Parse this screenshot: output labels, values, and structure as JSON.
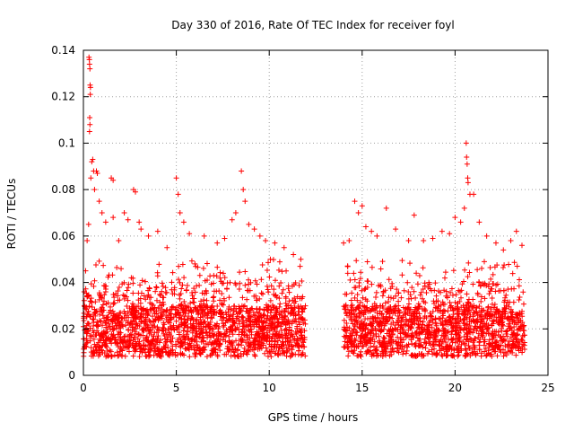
{
  "chart_data": {
    "type": "scatter",
    "title": "Day 330 of 2016, Rate Of TEC Index for receiver foyl",
    "xlabel": "GPS time / hours",
    "ylabel": "ROTI / TECUs",
    "xlim": [
      0,
      25
    ],
    "ylim": [
      0,
      0.14
    ],
    "xticks": [
      0,
      5,
      10,
      15,
      20,
      25
    ],
    "xtick_labels": [
      "0",
      "5",
      "10",
      "15",
      "20",
      "25"
    ],
    "yticks": [
      0,
      0.02,
      0.04,
      0.06,
      0.08,
      0.1,
      0.12,
      0.14
    ],
    "ytick_labels": [
      "0",
      "0.02",
      "0.04",
      "0.06",
      "0.08",
      "0.1",
      "0.12",
      "0.14"
    ],
    "grid": true,
    "marker": "+",
    "color": "#ff0000",
    "series": [
      {
        "name": "ROTI",
        "segments": [
          [
            0,
            11.95
          ],
          [
            14.0,
            23.75
          ]
        ],
        "typical_range": [
          0.008,
          0.04
        ],
        "points": [
          [
            0.05,
            0.03
          ],
          [
            0.12,
            0.045
          ],
          [
            0.2,
            0.058
          ],
          [
            0.28,
            0.065
          ],
          [
            0.3,
            0.137
          ],
          [
            0.32,
            0.136
          ],
          [
            0.33,
            0.134
          ],
          [
            0.35,
            0.132
          ],
          [
            0.36,
            0.125
          ],
          [
            0.38,
            0.124
          ],
          [
            0.37,
            0.121
          ],
          [
            0.34,
            0.111
          ],
          [
            0.35,
            0.108
          ],
          [
            0.33,
            0.105
          ],
          [
            0.4,
            0.085
          ],
          [
            0.45,
            0.092
          ],
          [
            0.5,
            0.093
          ],
          [
            0.55,
            0.088
          ],
          [
            0.6,
            0.08
          ],
          [
            0.7,
            0.088
          ],
          [
            0.75,
            0.087
          ],
          [
            0.85,
            0.075
          ],
          [
            1.0,
            0.07
          ],
          [
            1.2,
            0.066
          ],
          [
            1.5,
            0.085
          ],
          [
            1.6,
            0.084
          ],
          [
            1.6,
            0.068
          ],
          [
            1.9,
            0.058
          ],
          [
            2.2,
            0.07
          ],
          [
            2.4,
            0.067
          ],
          [
            2.7,
            0.08
          ],
          [
            2.8,
            0.079
          ],
          [
            3.0,
            0.066
          ],
          [
            3.1,
            0.063
          ],
          [
            3.5,
            0.06
          ],
          [
            4.0,
            0.062
          ],
          [
            4.5,
            0.055
          ],
          [
            5.0,
            0.085
          ],
          [
            5.1,
            0.078
          ],
          [
            5.2,
            0.07
          ],
          [
            5.4,
            0.066
          ],
          [
            5.7,
            0.061
          ],
          [
            6.0,
            0.048
          ],
          [
            6.5,
            0.06
          ],
          [
            7.2,
            0.057
          ],
          [
            7.6,
            0.059
          ],
          [
            8.0,
            0.067
          ],
          [
            8.2,
            0.07
          ],
          [
            8.5,
            0.088
          ],
          [
            8.6,
            0.08
          ],
          [
            8.7,
            0.075
          ],
          [
            8.9,
            0.065
          ],
          [
            9.2,
            0.063
          ],
          [
            9.5,
            0.06
          ],
          [
            9.8,
            0.058
          ],
          [
            10.3,
            0.057
          ],
          [
            10.8,
            0.055
          ],
          [
            11.3,
            0.052
          ],
          [
            11.7,
            0.05
          ],
          [
            14.0,
            0.057
          ],
          [
            14.3,
            0.058
          ],
          [
            14.6,
            0.075
          ],
          [
            14.8,
            0.07
          ],
          [
            15.0,
            0.073
          ],
          [
            15.2,
            0.064
          ],
          [
            15.5,
            0.062
          ],
          [
            15.8,
            0.06
          ],
          [
            16.3,
            0.072
          ],
          [
            16.8,
            0.063
          ],
          [
            17.5,
            0.058
          ],
          [
            17.8,
            0.069
          ],
          [
            18.3,
            0.058
          ],
          [
            18.8,
            0.059
          ],
          [
            19.3,
            0.062
          ],
          [
            19.7,
            0.061
          ],
          [
            20.0,
            0.068
          ],
          [
            20.3,
            0.066
          ],
          [
            20.5,
            0.072
          ],
          [
            20.6,
            0.1
          ],
          [
            20.62,
            0.094
          ],
          [
            20.65,
            0.091
          ],
          [
            20.68,
            0.085
          ],
          [
            20.7,
            0.083
          ],
          [
            20.8,
            0.078
          ],
          [
            21.0,
            0.078
          ],
          [
            21.3,
            0.066
          ],
          [
            21.7,
            0.06
          ],
          [
            22.2,
            0.057
          ],
          [
            22.6,
            0.054
          ],
          [
            23.0,
            0.058
          ],
          [
            23.3,
            0.062
          ],
          [
            23.6,
            0.056
          ]
        ]
      }
    ]
  }
}
